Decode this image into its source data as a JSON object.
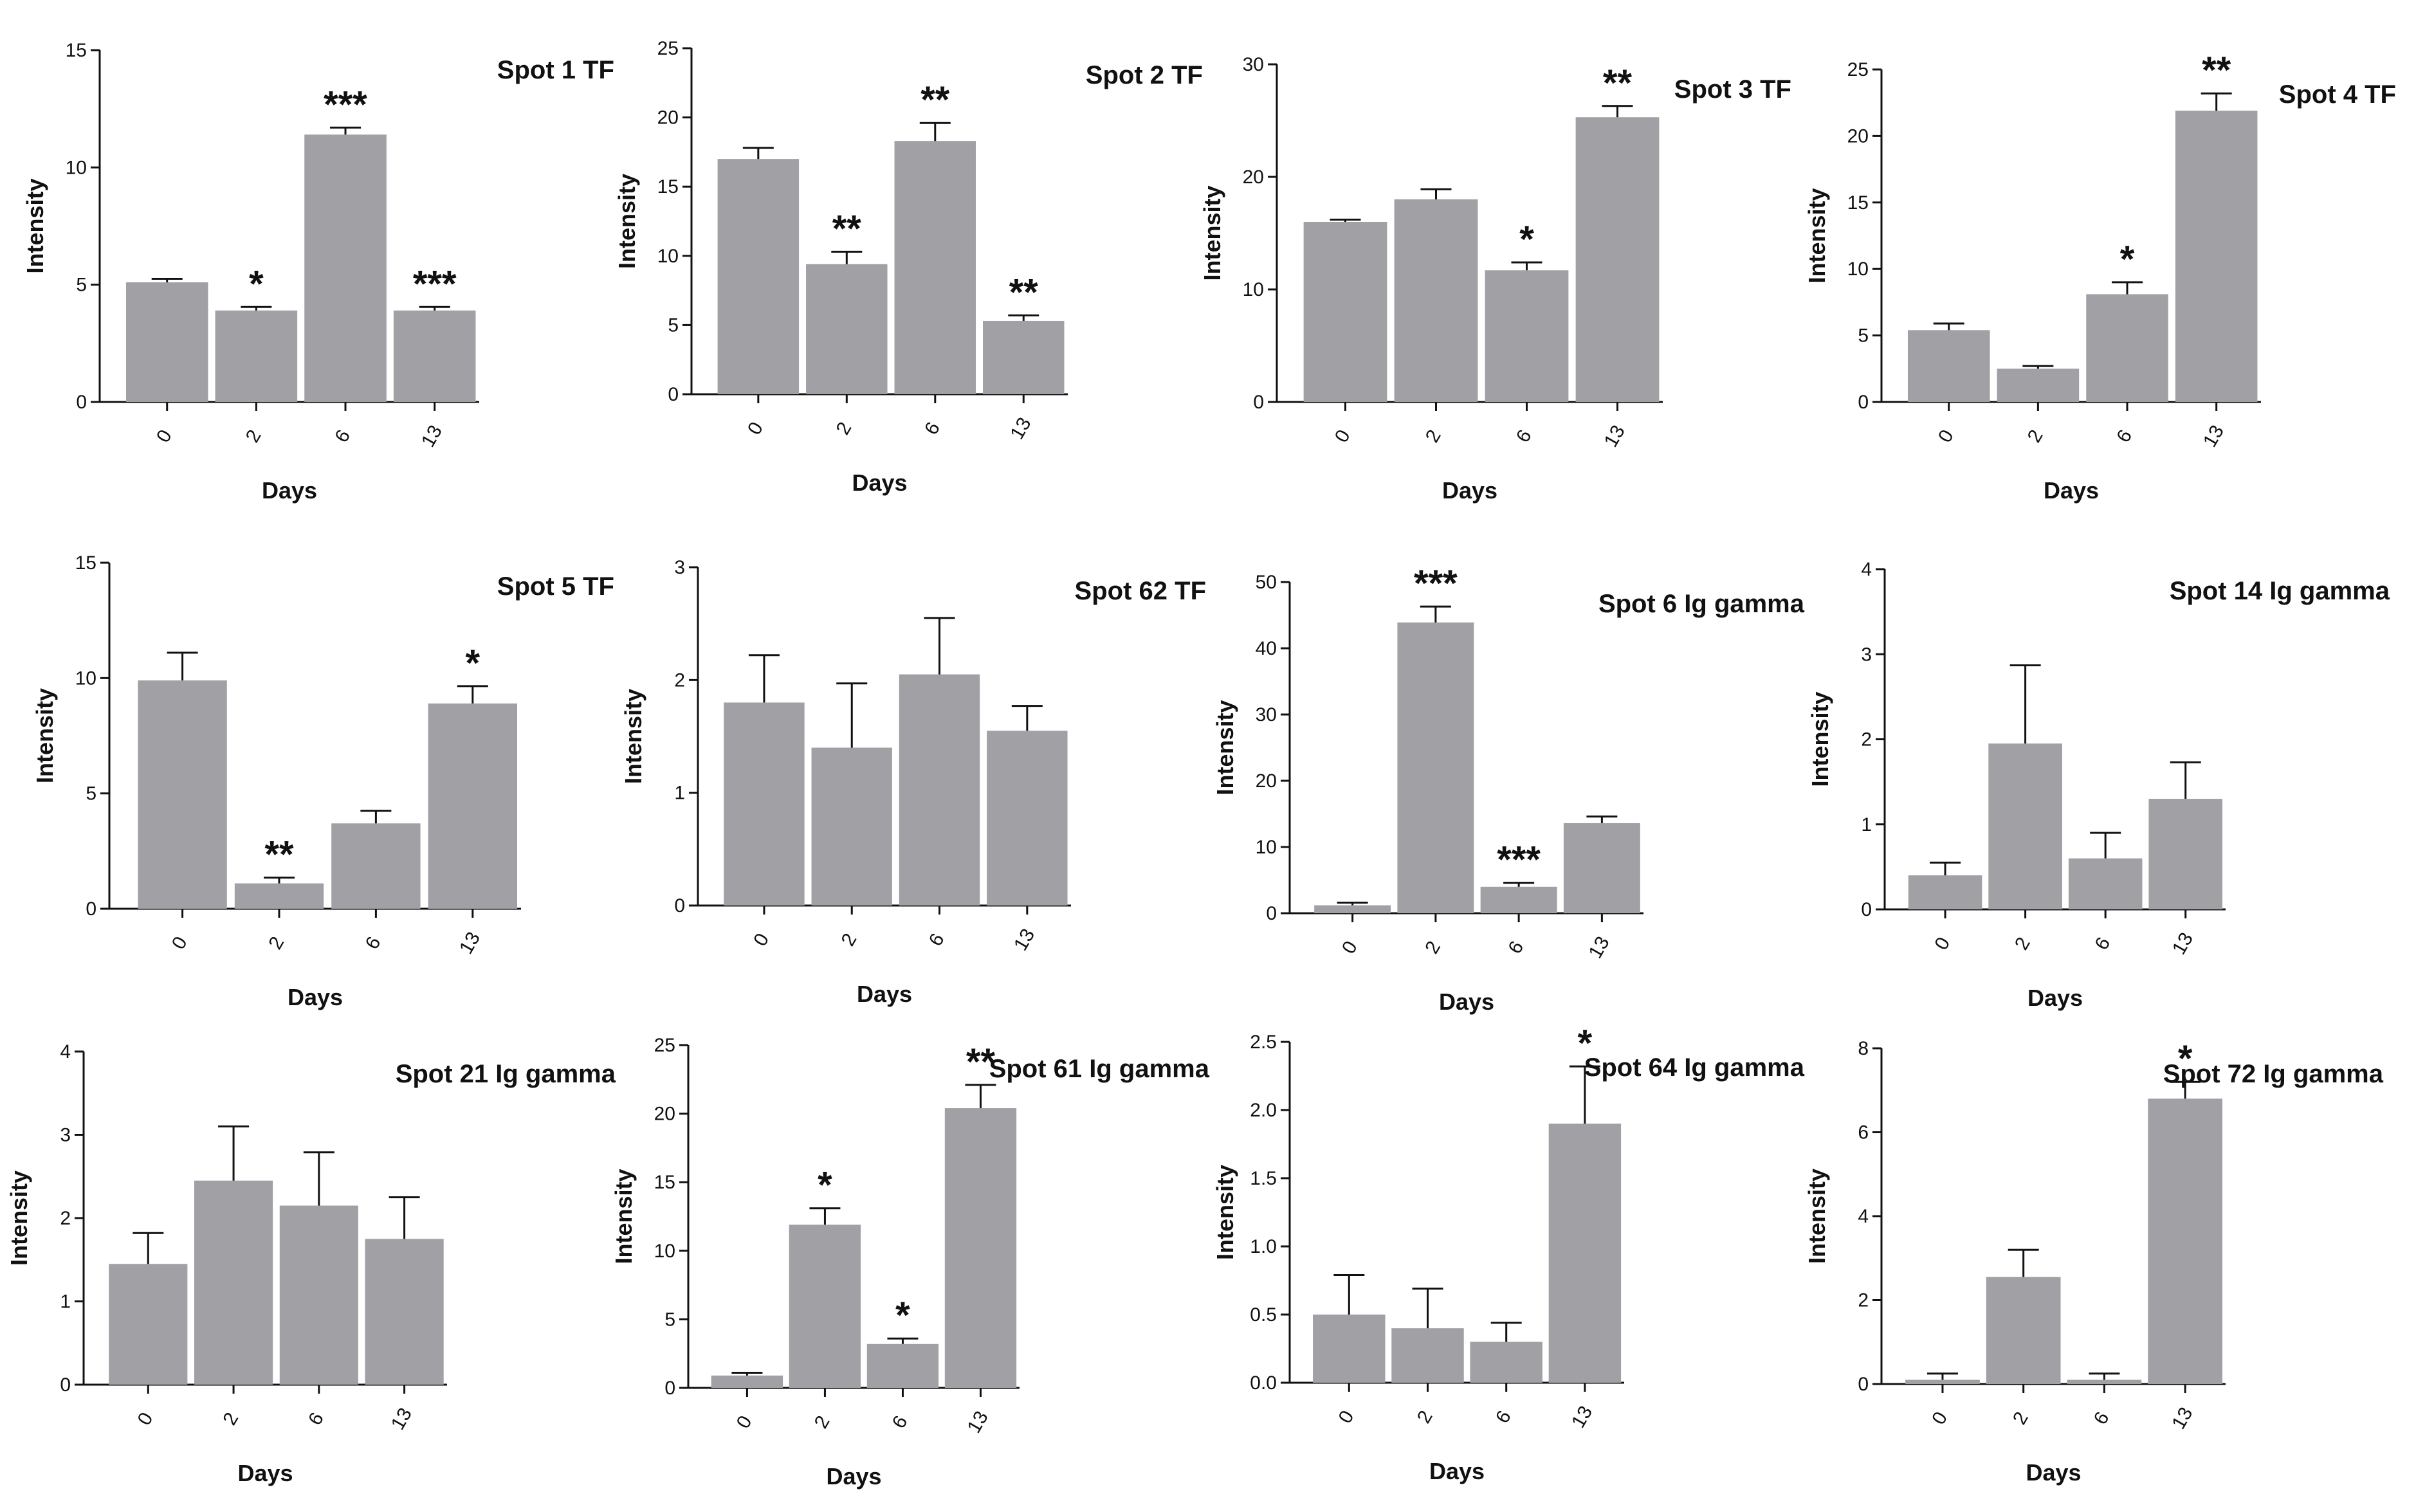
{
  "figure": {
    "name": "spot-intensity-panels",
    "bar_color": "#a0a0a5",
    "axis_color": "#111111"
  },
  "chart_data": [
    {
      "type": "bar",
      "title": "Spot 1 TF",
      "xlabel": "Days",
      "ylabel": "Intensity",
      "categories": [
        "0",
        "2",
        "6",
        "13"
      ],
      "values": [
        5.1,
        3.9,
        11.4,
        3.9
      ],
      "errors": [
        0.15,
        0.15,
        0.3,
        0.15
      ],
      "significance": [
        "",
        "*",
        "***",
        "***"
      ],
      "ylim": [
        0,
        15
      ],
      "yticks": [
        "0",
        "5",
        "10",
        "15"
      ]
    },
    {
      "type": "bar",
      "title": "Spot 2 TF",
      "xlabel": "Days",
      "ylabel": "Intensity",
      "categories": [
        "0",
        "2",
        "6",
        "13"
      ],
      "values": [
        17.0,
        9.4,
        18.3,
        5.3
      ],
      "errors": [
        0.8,
        0.9,
        1.3,
        0.4
      ],
      "significance": [
        "",
        "**",
        "**",
        "**"
      ],
      "ylim": [
        0,
        25
      ],
      "yticks": [
        "0",
        "5",
        "10",
        "15",
        "20",
        "25"
      ]
    },
    {
      "type": "bar",
      "title": "Spot 3 TF",
      "xlabel": "Days",
      "ylabel": "Intensity",
      "categories": [
        "0",
        "2",
        "6",
        "13"
      ],
      "values": [
        16.0,
        18.0,
        11.7,
        25.3
      ],
      "errors": [
        0.2,
        0.9,
        0.7,
        1.0
      ],
      "significance": [
        "",
        "",
        "*",
        "**"
      ],
      "ylim": [
        0,
        30
      ],
      "yticks": [
        "0",
        "10",
        "20",
        "30"
      ]
    },
    {
      "type": "bar",
      "title": "Spot 4 TF",
      "xlabel": "Days",
      "ylabel": "Intensity",
      "categories": [
        "0",
        "2",
        "6",
        "13"
      ],
      "values": [
        5.4,
        2.5,
        8.1,
        21.9
      ],
      "errors": [
        0.5,
        0.2,
        0.9,
        1.3
      ],
      "significance": [
        "",
        "",
        "*",
        "**"
      ],
      "ylim": [
        0,
        25
      ],
      "yticks": [
        "0",
        "5",
        "10",
        "15",
        "20",
        "25"
      ]
    },
    {
      "type": "bar",
      "title": "Spot 5 TF",
      "xlabel": "Days",
      "ylabel": "Intensity",
      "categories": [
        "0",
        "2",
        "6",
        "13"
      ],
      "values": [
        9.9,
        1.1,
        3.7,
        8.9
      ],
      "errors": [
        1.2,
        0.25,
        0.55,
        0.75
      ],
      "significance": [
        "",
        "**",
        "",
        "*"
      ],
      "ylim": [
        0,
        15
      ],
      "yticks": [
        "0",
        "5",
        "10",
        "15"
      ]
    },
    {
      "type": "bar",
      "title": "Spot 62 TF",
      "xlabel": "Days",
      "ylabel": "Intensity",
      "categories": [
        "0",
        "2",
        "6",
        "13"
      ],
      "values": [
        1.8,
        1.4,
        2.05,
        1.55
      ],
      "errors": [
        0.42,
        0.57,
        0.5,
        0.22
      ],
      "significance": [
        "",
        "",
        "",
        ""
      ],
      "ylim": [
        0,
        3
      ],
      "yticks": [
        "0",
        "1",
        "2",
        "3"
      ]
    },
    {
      "type": "bar",
      "title": "Spot 6 Ig gamma",
      "xlabel": "Days",
      "ylabel": "Intensity",
      "categories": [
        "0",
        "2",
        "6",
        "13"
      ],
      "values": [
        1.2,
        43.9,
        4.0,
        13.6
      ],
      "errors": [
        0.4,
        2.4,
        0.6,
        1.0
      ],
      "significance": [
        "",
        "***",
        "***",
        ""
      ],
      "ylim": [
        0,
        50
      ],
      "yticks": [
        "0",
        "10",
        "20",
        "30",
        "40",
        "50"
      ]
    },
    {
      "type": "bar",
      "title": "Spot 14 Ig gamma",
      "xlabel": "Days",
      "ylabel": "Intensity",
      "categories": [
        "0",
        "2",
        "6",
        "13"
      ],
      "values": [
        0.4,
        1.95,
        0.6,
        1.3
      ],
      "errors": [
        0.15,
        0.92,
        0.3,
        0.43
      ],
      "significance": [
        "",
        "",
        "",
        ""
      ],
      "ylim": [
        0,
        4
      ],
      "yticks": [
        "0",
        "1",
        "2",
        "3",
        "4"
      ]
    },
    {
      "type": "bar",
      "title": "Spot 21 Ig gamma",
      "xlabel": "Days",
      "ylabel": "Intensity",
      "categories": [
        "0",
        "2",
        "6",
        "13"
      ],
      "values": [
        1.45,
        2.45,
        2.15,
        1.75
      ],
      "errors": [
        0.37,
        0.65,
        0.64,
        0.5
      ],
      "significance": [
        "",
        "",
        "",
        ""
      ],
      "ylim": [
        0,
        4
      ],
      "yticks": [
        "0",
        "1",
        "2",
        "3",
        "4"
      ]
    },
    {
      "type": "bar",
      "title": "Spot 61 Ig gamma",
      "xlabel": "Days",
      "ylabel": "Intensity",
      "categories": [
        "0",
        "2",
        "6",
        "13"
      ],
      "values": [
        0.9,
        11.9,
        3.2,
        20.4
      ],
      "errors": [
        0.2,
        1.2,
        0.4,
        1.7
      ],
      "significance": [
        "",
        "*",
        "*",
        "**"
      ],
      "ylim": [
        0,
        25
      ],
      "yticks": [
        "0",
        "5",
        "10",
        "15",
        "20",
        "25"
      ]
    },
    {
      "type": "bar",
      "title": "Spot 64 Ig gamma",
      "xlabel": "Days",
      "ylabel": "Intensity",
      "categories": [
        "0",
        "2",
        "6",
        "13"
      ],
      "values": [
        0.5,
        0.4,
        0.3,
        1.9
      ],
      "errors": [
        0.29,
        0.29,
        0.14,
        0.42
      ],
      "significance": [
        "",
        "",
        "",
        "*"
      ],
      "ylim": [
        0,
        2.5
      ],
      "yticks": [
        "0.0",
        "0.5",
        "1.0",
        "1.5",
        "2.0",
        "2.5"
      ]
    },
    {
      "type": "bar",
      "title": "Spot 72 Ig gamma",
      "xlabel": "Days",
      "ylabel": "Intensity",
      "categories": [
        "0",
        "2",
        "6",
        "13"
      ],
      "values": [
        0.1,
        2.55,
        0.1,
        6.8
      ],
      "errors": [
        0.15,
        0.65,
        0.15,
        0.4
      ],
      "significance": [
        "",
        "",
        "",
        "*"
      ],
      "ylim": [
        0,
        8
      ],
      "yticks": [
        "0",
        "2",
        "4",
        "6",
        "8"
      ]
    }
  ]
}
